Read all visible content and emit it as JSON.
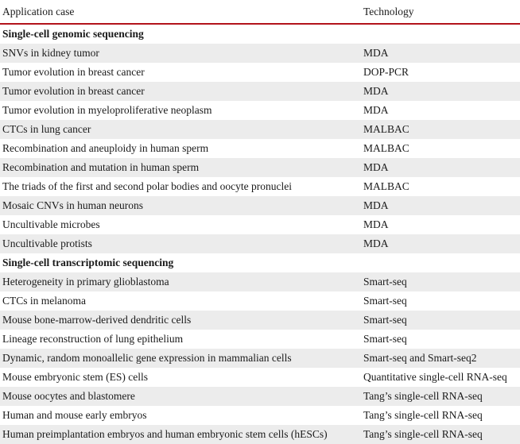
{
  "header": {
    "application": "Application case",
    "technology": "Technology"
  },
  "rows": [
    {
      "application": "Single-cell genomic sequencing",
      "technology": "",
      "section": true
    },
    {
      "application": "SNVs in kidney tumor",
      "technology": "MDA"
    },
    {
      "application": "Tumor evolution in breast cancer",
      "technology": "DOP-PCR"
    },
    {
      "application": "Tumor evolution in breast cancer",
      "technology": "MDA"
    },
    {
      "application": "Tumor evolution in myeloproliferative neoplasm",
      "technology": "MDA"
    },
    {
      "application": "CTCs in lung cancer",
      "technology": "MALBAC"
    },
    {
      "application": "Recombination and aneuploidy in human sperm",
      "technology": "MALBAC"
    },
    {
      "application": "Recombination and mutation in human sperm",
      "technology": "MDA"
    },
    {
      "application": "The triads of the first and second polar bodies and oocyte pronuclei",
      "technology": "MALBAC"
    },
    {
      "application": "Mosaic CNVs in human neurons",
      "technology": "MDA"
    },
    {
      "application": "Uncultivable microbes",
      "technology": "MDA"
    },
    {
      "application": "Uncultivable protists",
      "technology": "MDA"
    },
    {
      "application": "Single-cell transcriptomic sequencing",
      "technology": "",
      "section": true
    },
    {
      "application": "Heterogeneity in primary glioblastoma",
      "technology": "Smart-seq"
    },
    {
      "application": "CTCs in melanoma",
      "technology": "Smart-seq"
    },
    {
      "application": "Mouse bone-marrow-derived dendritic cells",
      "technology": "Smart-seq"
    },
    {
      "application": "Lineage reconstruction of lung epithelium",
      "technology": "Smart-seq"
    },
    {
      "application": "Dynamic, random monoallelic gene expression in mammalian cells",
      "technology": "Smart-seq and Smart-seq2"
    },
    {
      "application": "Mouse embryonic stem (ES) cells",
      "technology": "Quantitative single-cell RNA-seq"
    },
    {
      "application": "Mouse oocytes and blastomere",
      "technology": "Tang’s single-cell RNA-seq"
    },
    {
      "application": "Human and mouse early embryos",
      "technology": "Tang’s single-cell RNA-seq"
    },
    {
      "application": "Human preimplantation embryos and human embryonic stem cells (hESCs)",
      "technology": "Tang’s single-cell RNA-seq"
    }
  ]
}
